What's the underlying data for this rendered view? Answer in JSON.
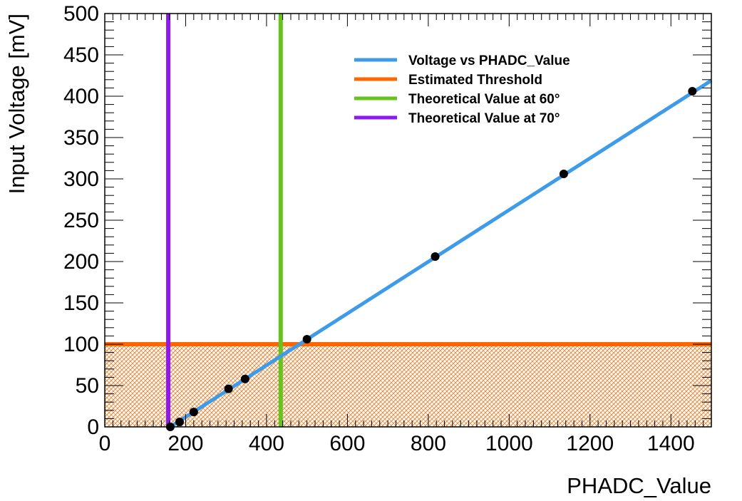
{
  "chart_data": {
    "type": "scatter",
    "title": "",
    "xlabel": "PHADC_Value",
    "ylabel": "Input Voltage [mV]",
    "xlim": [
      0,
      1500
    ],
    "ylim": [
      0,
      500
    ],
    "x_ticks": [
      0,
      200,
      400,
      600,
      800,
      1000,
      1200,
      1400
    ],
    "y_ticks": [
      0,
      50,
      100,
      150,
      200,
      250,
      300,
      350,
      400,
      450,
      500
    ],
    "grid": false,
    "legend_position": "top-right",
    "points": {
      "x": [
        162,
        185,
        220,
        306,
        347,
        500,
        817,
        1135,
        1453
      ],
      "y": [
        0,
        6,
        18,
        46,
        58,
        106,
        206,
        306,
        406
      ],
      "color": "#000000"
    },
    "series": [
      {
        "name": "Voltage vs PHADC_Value",
        "kind": "line",
        "color": "#3d9be9",
        "x": [
          162,
          1500
        ],
        "y": [
          0,
          419
        ]
      },
      {
        "name": "Estimated Threshold",
        "kind": "horizontal-line",
        "color": "#ff6600",
        "y": 100,
        "fill_below": "hatched"
      },
      {
        "name": "Theoretical Value at 60°",
        "kind": "vertical-line",
        "color": "#66c21d",
        "x": 435
      },
      {
        "name": "Theoretical Value at 70°",
        "kind": "vertical-line",
        "color": "#8f17ef",
        "x": 157
      }
    ]
  }
}
